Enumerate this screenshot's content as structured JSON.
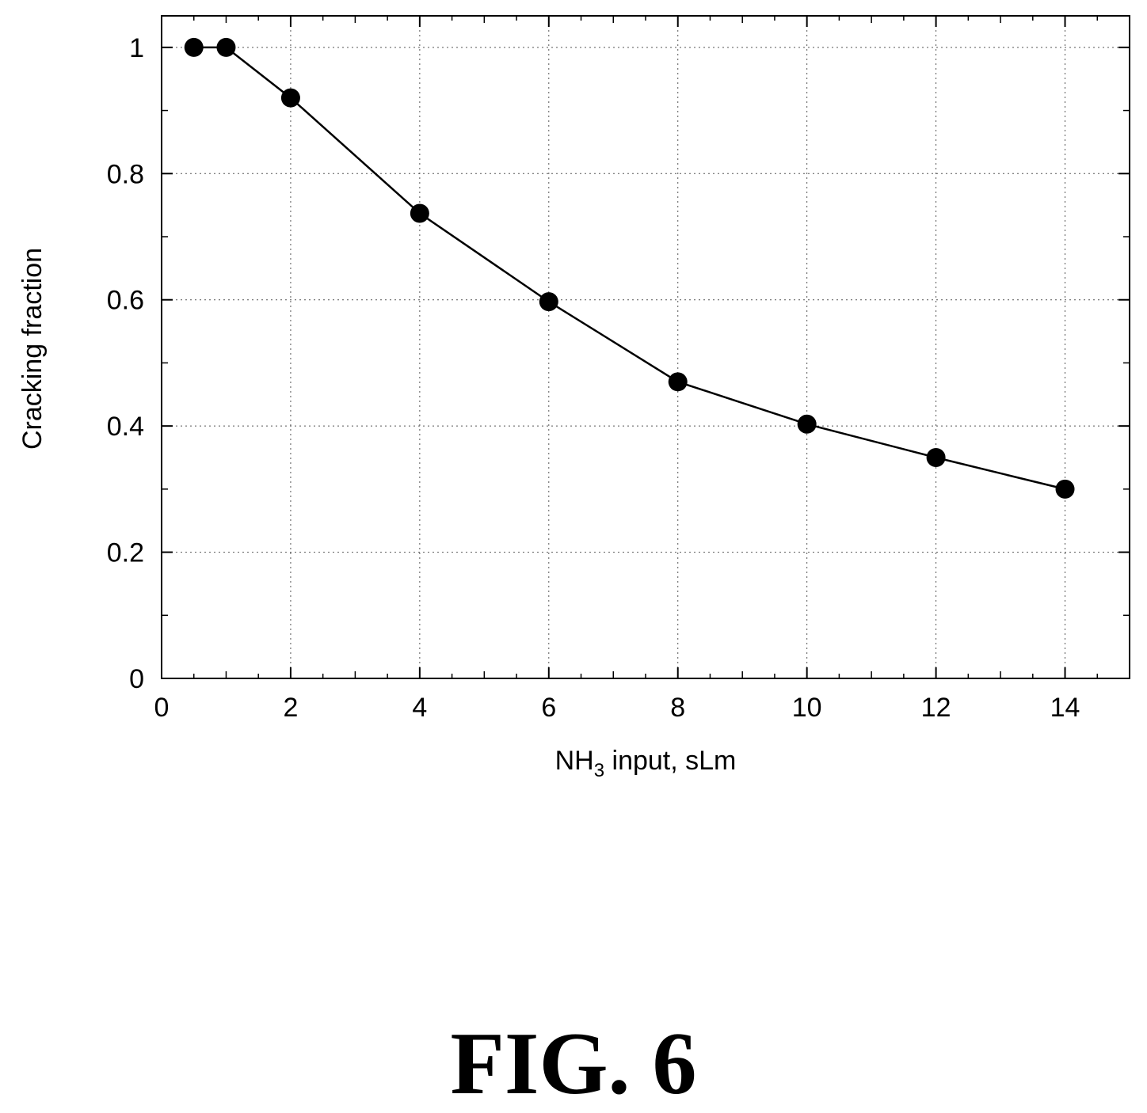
{
  "figure": {
    "caption": "FIG. 6"
  },
  "chart_data": {
    "type": "line",
    "title": "",
    "xlabel_main": "NH",
    "xlabel_sub": "3",
    "xlabel_rest": " input, sLm",
    "ylabel": "Cracking fraction",
    "xlim": [
      0,
      15
    ],
    "ylim": [
      0,
      1.05
    ],
    "x_ticks": [
      0,
      2,
      4,
      6,
      8,
      10,
      12,
      14
    ],
    "y_ticks": [
      0,
      0.2,
      0.4,
      0.6,
      0.8,
      1
    ],
    "x_tick_labels": [
      "0",
      "2",
      "4",
      "6",
      "8",
      "10",
      "12",
      "14"
    ],
    "y_tick_labels": [
      "0",
      "0.2",
      "0.4",
      "0.6",
      "0.8",
      "1"
    ],
    "grid": true,
    "marker": "filled-circle",
    "line_color": "#000000",
    "x": [
      0.5,
      1,
      2,
      4,
      6,
      8,
      10,
      12,
      14
    ],
    "y": [
      1.0,
      1.0,
      0.92,
      0.737,
      0.597,
      0.47,
      0.403,
      0.35,
      0.3
    ]
  }
}
